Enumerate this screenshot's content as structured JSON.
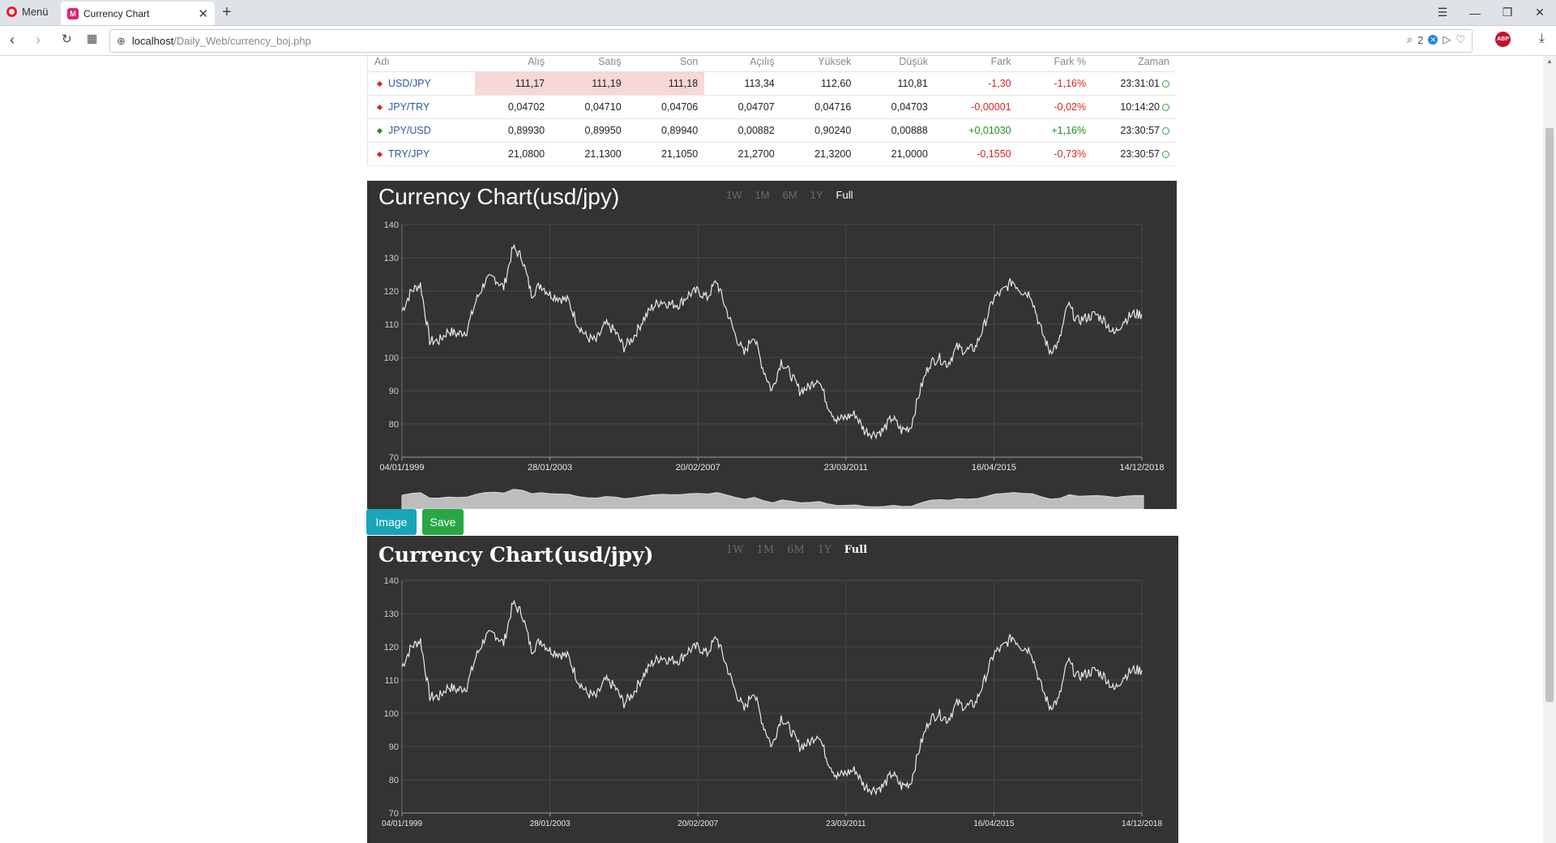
{
  "browser": {
    "menu_label": "Menü",
    "tab_title": "Currency Chart",
    "url_host": "localhost",
    "url_path": "/Daily_Web/currency_boj.php",
    "badge_count": "2",
    "abp_label": "ABP"
  },
  "table": {
    "headers": [
      "Adı",
      "Alış",
      "Satış",
      "Son",
      "Açılış",
      "Yüksek",
      "Düşük",
      "Fark",
      "Fark %",
      "Zaman"
    ],
    "rows": [
      {
        "name": "USD/JPY",
        "trend": "down",
        "alis": "111,17",
        "satis": "111,19",
        "son": "111,18",
        "acilis": "113,34",
        "yuksek": "112,60",
        "dusuk": "110,81",
        "fark": "-1,30",
        "fark_pct": "-1,16%",
        "zaman": "23:31:01",
        "highlight": true
      },
      {
        "name": "JPY/TRY",
        "trend": "down",
        "alis": "0,04702",
        "satis": "0,04710",
        "son": "0,04706",
        "acilis": "0,04707",
        "yuksek": "0,04716",
        "dusuk": "0,04703",
        "fark": "-0,00001",
        "fark_pct": "-0,02%",
        "zaman": "10:14:20",
        "highlight": false
      },
      {
        "name": "JPY/USD",
        "trend": "up",
        "alis": "0,89930",
        "satis": "0,89950",
        "son": "0,89940",
        "acilis": "0,00882",
        "yuksek": "0,90240",
        "dusuk": "0,00888",
        "fark": "+0,01030",
        "fark_pct": "+1,16%",
        "zaman": "23:30:57",
        "highlight": false
      },
      {
        "name": "TRY/JPY",
        "trend": "down",
        "alis": "21,0800",
        "satis": "21,1300",
        "son": "21,1050",
        "acilis": "21,2700",
        "yuksek": "21,3200",
        "dusuk": "21,0000",
        "fark": "-0,1550",
        "fark_pct": "-0,73%",
        "zaman": "23:30:57",
        "highlight": false
      }
    ]
  },
  "chart1": {
    "title": "Currency Chart(usd/jpy)",
    "ranges": [
      "1W",
      "1M",
      "6M",
      "1Y",
      "Full"
    ],
    "active_range": "Full"
  },
  "chart2": {
    "title": "Currency Chart(usd/jpy)",
    "ranges": [
      "1W",
      "1M",
      "6M",
      "1Y",
      "Full"
    ],
    "active_range": "Full"
  },
  "buttons": {
    "image_label": "Image",
    "save_label": "Save"
  },
  "colors": {
    "chart_bg": "#333333",
    "line": "#e8e8e8",
    "neg": "#e02020",
    "pos": "#1e8e1e",
    "highlight": "#f8d7d7"
  },
  "chart_data": [
    {
      "type": "line",
      "title": "Currency Chart(usd/jpy)",
      "xlabel": "",
      "ylabel": "",
      "ylim": [
        70,
        140
      ],
      "yticks": [
        70,
        80,
        90,
        100,
        110,
        120,
        130,
        140
      ],
      "xtick_labels": [
        "04/01/1999",
        "28/01/2003",
        "20/02/2007",
        "23/03/2011",
        "16/04/2015",
        "14/12/2018"
      ],
      "grid": true,
      "series": [
        {
          "x": [
            "1999-01",
            "1999-04",
            "1999-07",
            "1999-10",
            "2000-01",
            "2000-04",
            "2000-07",
            "2000-10",
            "2001-01",
            "2001-04",
            "2001-07",
            "2001-10",
            "2002-01",
            "2002-04",
            "2002-07",
            "2002-10",
            "2003-01",
            "2003-04",
            "2003-07",
            "2003-10",
            "2004-01",
            "2004-04",
            "2004-07",
            "2004-10",
            "2005-01",
            "2005-04",
            "2005-07",
            "2005-10",
            "2006-01",
            "2006-04",
            "2006-07",
            "2006-10",
            "2007-01",
            "2007-04",
            "2007-07",
            "2007-10",
            "2008-01",
            "2008-04",
            "2008-07",
            "2008-10",
            "2009-01",
            "2009-04",
            "2009-07",
            "2009-10",
            "2010-01",
            "2010-04",
            "2010-07",
            "2010-10",
            "2011-01",
            "2011-04",
            "2011-07",
            "2011-10",
            "2012-01",
            "2012-04",
            "2012-07",
            "2012-10",
            "2013-01",
            "2013-04",
            "2013-07",
            "2013-10",
            "2014-01",
            "2014-04",
            "2014-07",
            "2014-10",
            "2015-01",
            "2015-04",
            "2015-07",
            "2015-10",
            "2016-01",
            "2016-04",
            "2016-07",
            "2016-10",
            "2017-01",
            "2017-04",
            "2017-07",
            "2017-10",
            "2018-01",
            "2018-04",
            "2018-07",
            "2018-10",
            "2018-12"
          ],
          "values": [
            114,
            120,
            122,
            105,
            105,
            108,
            107,
            108,
            117,
            123,
            124,
            121,
            133,
            130,
            119,
            122,
            119,
            118,
            117,
            110,
            106,
            105,
            110,
            108,
            103,
            106,
            111,
            115,
            117,
            116,
            116,
            119,
            120,
            118,
            123,
            115,
            107,
            101,
            107,
            97,
            90,
            99,
            95,
            90,
            91,
            94,
            86,
            81,
            82,
            83,
            78,
            77,
            78,
            82,
            78,
            79,
            90,
            98,
            100,
            98,
            103,
            102,
            103,
            110,
            118,
            120,
            123,
            120,
            119,
            109,
            102,
            104,
            116,
            111,
            112,
            113,
            111,
            107,
            111,
            113,
            113
          ]
        }
      ]
    },
    {
      "type": "line",
      "title": "Currency Chart(usd/jpy)",
      "xlabel": "",
      "ylabel": "",
      "ylim": [
        70,
        140
      ],
      "yticks": [
        70,
        80,
        90,
        100,
        110,
        120,
        130,
        140
      ],
      "xtick_labels": [
        "04/01/1999",
        "28/01/2003",
        "20/02/2007",
        "23/03/2011",
        "16/04/2015",
        "14/12/2018"
      ],
      "grid": true,
      "series": [
        {
          "x": [
            "1999-01",
            "1999-04",
            "1999-07",
            "1999-10",
            "2000-01",
            "2000-04",
            "2000-07",
            "2000-10",
            "2001-01",
            "2001-04",
            "2001-07",
            "2001-10",
            "2002-01",
            "2002-04",
            "2002-07",
            "2002-10",
            "2003-01",
            "2003-04",
            "2003-07",
            "2003-10",
            "2004-01",
            "2004-04",
            "2004-07",
            "2004-10",
            "2005-01",
            "2005-04",
            "2005-07",
            "2005-10",
            "2006-01",
            "2006-04",
            "2006-07",
            "2006-10",
            "2007-01",
            "2007-04",
            "2007-07",
            "2007-10",
            "2008-01",
            "2008-04",
            "2008-07",
            "2008-10",
            "2009-01",
            "2009-04",
            "2009-07",
            "2009-10",
            "2010-01",
            "2010-04",
            "2010-07",
            "2010-10",
            "2011-01",
            "2011-04",
            "2011-07",
            "2011-10",
            "2012-01",
            "2012-04",
            "2012-07",
            "2012-10",
            "2013-01",
            "2013-04",
            "2013-07",
            "2013-10",
            "2014-01",
            "2014-04",
            "2014-07",
            "2014-10",
            "2015-01",
            "2015-04",
            "2015-07",
            "2015-10",
            "2016-01",
            "2016-04",
            "2016-07",
            "2016-10",
            "2017-01",
            "2017-04",
            "2017-07",
            "2017-10",
            "2018-01",
            "2018-04",
            "2018-07",
            "2018-10",
            "2018-12"
          ],
          "values": [
            114,
            120,
            122,
            105,
            105,
            108,
            107,
            108,
            117,
            123,
            124,
            121,
            133,
            130,
            119,
            122,
            119,
            118,
            117,
            110,
            106,
            105,
            110,
            108,
            103,
            106,
            111,
            115,
            117,
            116,
            116,
            119,
            120,
            118,
            123,
            115,
            107,
            101,
            107,
            97,
            90,
            99,
            95,
            90,
            91,
            94,
            86,
            81,
            82,
            83,
            78,
            77,
            78,
            82,
            78,
            79,
            90,
            98,
            100,
            98,
            103,
            102,
            103,
            110,
            118,
            120,
            123,
            120,
            119,
            109,
            102,
            104,
            116,
            111,
            112,
            113,
            111,
            107,
            111,
            113,
            113
          ]
        }
      ]
    }
  ]
}
